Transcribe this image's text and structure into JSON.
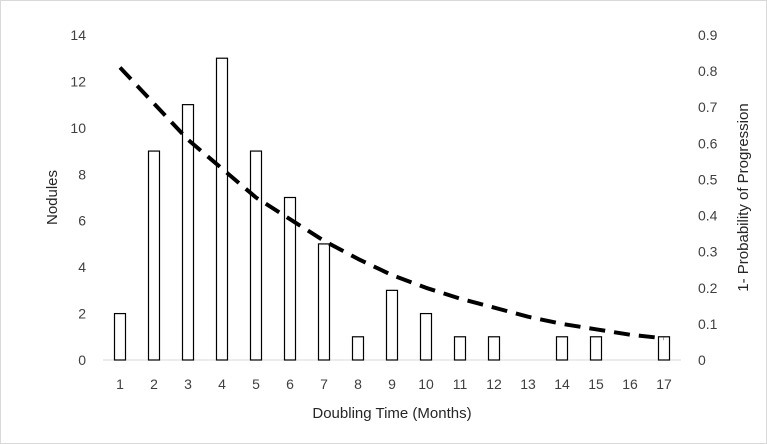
{
  "chart_data": {
    "type": "bar",
    "categories": [
      "1",
      "2",
      "3",
      "4",
      "5",
      "6",
      "7",
      "8",
      "9",
      "10",
      "11",
      "12",
      "13",
      "14",
      "15",
      "16",
      "17"
    ],
    "series": [
      {
        "values": [
          2,
          9,
          11,
          13,
          9,
          7,
          5,
          1,
          3,
          2,
          1,
          1,
          0,
          1,
          1,
          0,
          1
        ],
        "axis": "left",
        "kind": "bar"
      },
      {
        "values": [
          0.81,
          0.71,
          0.61,
          0.53,
          0.45,
          0.39,
          0.33,
          0.28,
          0.235,
          0.2,
          0.17,
          0.145,
          0.12,
          0.1,
          0.085,
          0.07,
          0.06
        ],
        "axis": "right",
        "kind": "dashed-line"
      }
    ],
    "xlabel": "Doubling Time (Months)",
    "ylabel": "Nodules",
    "y2label": "1- Probability of Progression",
    "ylim": [
      0,
      14
    ],
    "y2lim": [
      0,
      0.9
    ],
    "yticks": [
      "0",
      "2",
      "4",
      "6",
      "8",
      "10",
      "12",
      "14"
    ],
    "y2ticks": [
      "0",
      "0.1",
      "0.2",
      "0.3",
      "0.4",
      "0.5",
      "0.6",
      "0.7",
      "0.8",
      "0.9"
    ],
    "grid": false,
    "legend": "none"
  },
  "colors": {
    "bar_fill": "#ffffff",
    "bar_stroke": "#000000",
    "line": "#000000",
    "axis": "#d9d9d9",
    "text": "#404040"
  }
}
